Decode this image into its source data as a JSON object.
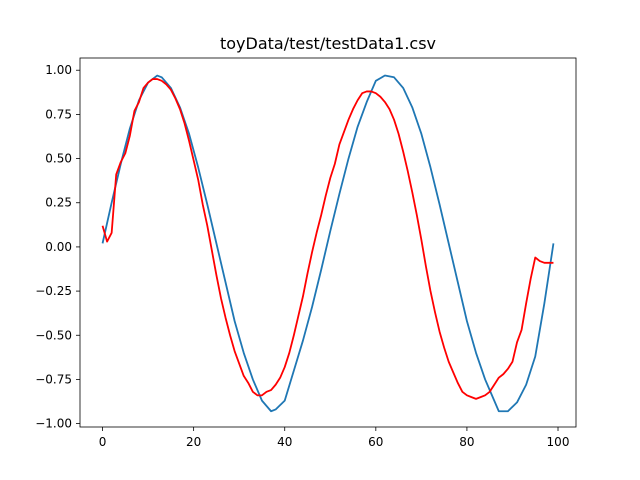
{
  "chart_data": {
    "type": "line",
    "title": "toyData/test/testData1.csv",
    "xlabel": "",
    "ylabel": "",
    "xlim": [
      -4.95,
      103.95
    ],
    "ylim": [
      -1.0192,
      1.0692
    ],
    "xticks": [
      0,
      20,
      40,
      60,
      80,
      100
    ],
    "xtick_labels": [
      "0",
      "20",
      "40",
      "60",
      "80",
      "100"
    ],
    "yticks": [
      -1.0,
      -0.75,
      -0.5,
      -0.25,
      0.0,
      0.25,
      0.5,
      0.75,
      1.0
    ],
    "ytick_labels": [
      "−1.00",
      "−0.75",
      "−0.50",
      "−0.25",
      "0.00",
      "0.25",
      "0.50",
      "0.75",
      "1.00"
    ],
    "grid": false,
    "legend": "none",
    "series": [
      {
        "color": "#1f77b4",
        "x": [
          0,
          2,
          4,
          6,
          8,
          10,
          12,
          13,
          15,
          17,
          19,
          21,
          23,
          25,
          27,
          29,
          31,
          33,
          35,
          37,
          38,
          40,
          42,
          44,
          46,
          48,
          50,
          52,
          54,
          56,
          58,
          60,
          62,
          64,
          66,
          68,
          70,
          72,
          74,
          76,
          78,
          80,
          82,
          84,
          86,
          87,
          89,
          91,
          93,
          95,
          97,
          99
        ],
        "y": [
          0.02,
          0.25,
          0.47,
          0.67,
          0.83,
          0.93,
          0.97,
          0.96,
          0.9,
          0.79,
          0.64,
          0.45,
          0.24,
          0.02,
          -0.2,
          -0.42,
          -0.6,
          -0.75,
          -0.87,
          -0.93,
          -0.92,
          -0.87,
          -0.7,
          -0.53,
          -0.34,
          -0.13,
          0.09,
          0.3,
          0.5,
          0.68,
          0.82,
          0.94,
          0.97,
          0.96,
          0.9,
          0.79,
          0.64,
          0.45,
          0.24,
          0.02,
          -0.2,
          -0.42,
          -0.6,
          -0.75,
          -0.87,
          -0.93,
          -0.93,
          -0.88,
          -0.78,
          -0.62,
          -0.32,
          0.02
        ]
      },
      {
        "color": "#ff0000",
        "x": [
          0,
          1,
          2,
          3,
          4,
          5,
          6,
          7,
          8,
          9,
          10,
          11,
          12,
          13,
          14,
          15,
          16,
          17,
          18,
          19,
          20,
          21,
          22,
          23,
          24,
          25,
          26,
          27,
          28,
          29,
          30,
          31,
          32,
          33,
          34,
          35,
          36,
          37,
          38,
          39,
          40,
          41,
          42,
          43,
          44,
          45,
          46,
          47,
          48,
          49,
          50,
          51,
          52,
          53,
          54,
          55,
          56,
          57,
          58,
          59,
          60,
          61,
          62,
          63,
          64,
          65,
          66,
          67,
          68,
          69,
          70,
          71,
          72,
          73,
          74,
          75,
          76,
          77,
          78,
          79,
          80,
          81,
          82,
          83,
          84,
          85,
          86,
          87,
          88,
          89,
          90,
          91,
          92,
          93,
          94,
          95,
          96,
          97,
          98,
          99
        ],
        "y": [
          0.12,
          0.03,
          0.08,
          0.41,
          0.48,
          0.53,
          0.63,
          0.77,
          0.82,
          0.9,
          0.93,
          0.95,
          0.95,
          0.94,
          0.92,
          0.89,
          0.84,
          0.78,
          0.7,
          0.6,
          0.49,
          0.38,
          0.24,
          0.12,
          -0.02,
          -0.16,
          -0.29,
          -0.4,
          -0.5,
          -0.59,
          -0.66,
          -0.73,
          -0.77,
          -0.82,
          -0.84,
          -0.84,
          -0.82,
          -0.81,
          -0.78,
          -0.74,
          -0.68,
          -0.6,
          -0.5,
          -0.39,
          -0.28,
          -0.15,
          -0.03,
          0.08,
          0.18,
          0.29,
          0.39,
          0.47,
          0.58,
          0.65,
          0.72,
          0.78,
          0.83,
          0.87,
          0.88,
          0.88,
          0.87,
          0.85,
          0.82,
          0.78,
          0.72,
          0.64,
          0.54,
          0.43,
          0.31,
          0.18,
          0.04,
          -0.11,
          -0.25,
          -0.37,
          -0.48,
          -0.57,
          -0.65,
          -0.71,
          -0.77,
          -0.82,
          -0.84,
          -0.85,
          -0.86,
          -0.85,
          -0.84,
          -0.82,
          -0.78,
          -0.74,
          -0.72,
          -0.69,
          -0.65,
          -0.54,
          -0.47,
          -0.32,
          -0.18,
          -0.06,
          -0.08,
          -0.09,
          -0.09,
          -0.09
        ]
      }
    ]
  }
}
